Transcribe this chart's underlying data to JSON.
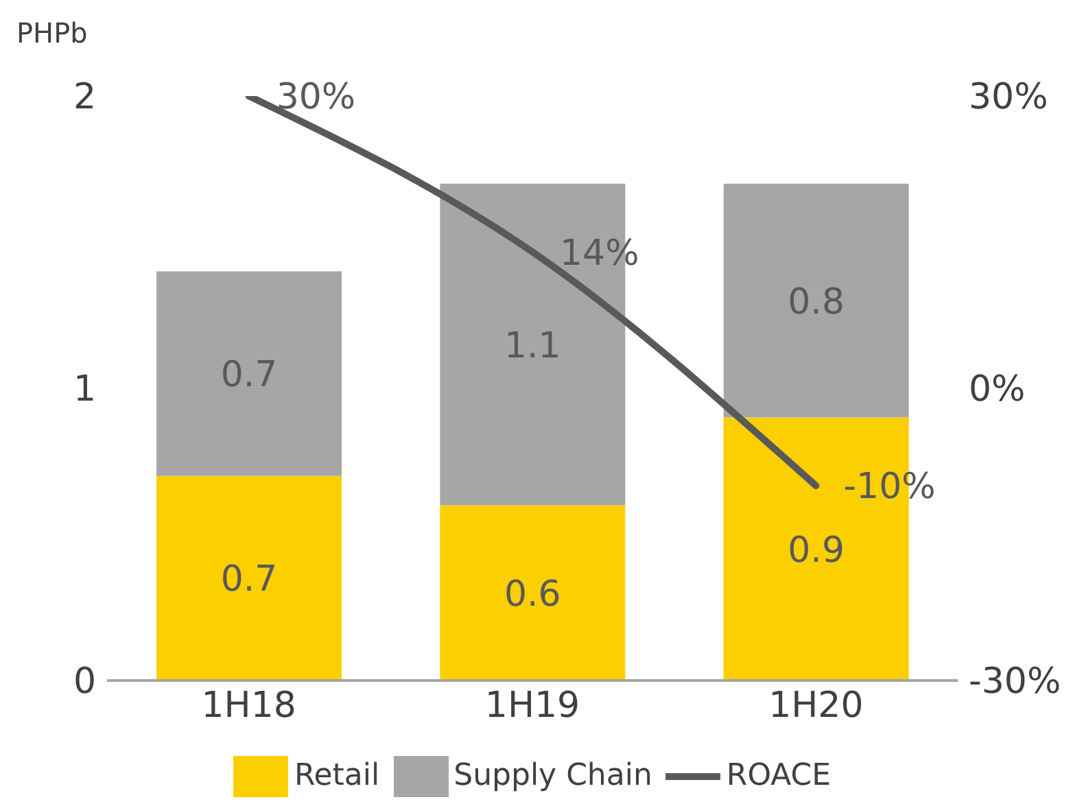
{
  "chart_data": {
    "type": "bar",
    "stacked": true,
    "ylabel": "PHPb",
    "categories": [
      "1H18",
      "1H19",
      "1H20"
    ],
    "series": [
      {
        "name": "Retail",
        "color": "#fccf00",
        "values": [
          0.7,
          0.6,
          0.9
        ]
      },
      {
        "name": "Supply Chain",
        "color": "#a6a6a6",
        "values": [
          0.7,
          1.1,
          0.8
        ]
      },
      {
        "name": "ROACE",
        "type": "line",
        "axis": "y2",
        "color": "#595959",
        "values": [
          30,
          14,
          -10
        ],
        "value_labels": [
          "30%",
          "14%",
          "-10%"
        ]
      }
    ],
    "ylim": [
      0,
      2
    ],
    "yticks": [
      0,
      1,
      2
    ],
    "y2lim": [
      -30,
      30
    ],
    "y2ticks": [
      {
        "value": -30,
        "label": "-30%"
      },
      {
        "value": 0,
        "label": "0%"
      },
      {
        "value": 30,
        "label": "30%"
      }
    ],
    "data_labels": true,
    "legend": "bottom",
    "grid": false
  }
}
